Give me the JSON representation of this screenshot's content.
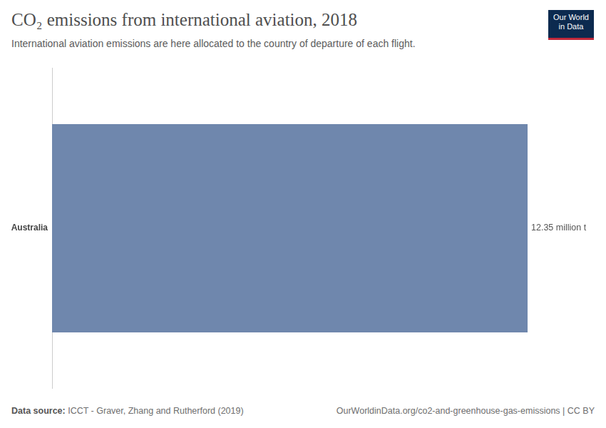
{
  "chart_data": {
    "type": "bar",
    "orientation": "horizontal",
    "title": "CO₂ emissions from international aviation, 2018",
    "subtitle": "International aviation emissions are here allocated to the country of departure of each flight.",
    "categories": [
      "Australia"
    ],
    "values": [
      12.35
    ],
    "value_labels": [
      "12.35 million t"
    ],
    "data_labels": true,
    "color": "#6f87ad",
    "xlim": [
      0,
      12.35
    ],
    "grid": false,
    "tick_labels": "y",
    "source_label": "Data source:",
    "source": "ICCT - Graver, Zhang and Rutherford (2019)",
    "url_note": "OurWorldinData.org/co2-and-greenhouse-gas-emissions | CC BY",
    "logo": [
      "Our World",
      "in Data"
    ]
  }
}
